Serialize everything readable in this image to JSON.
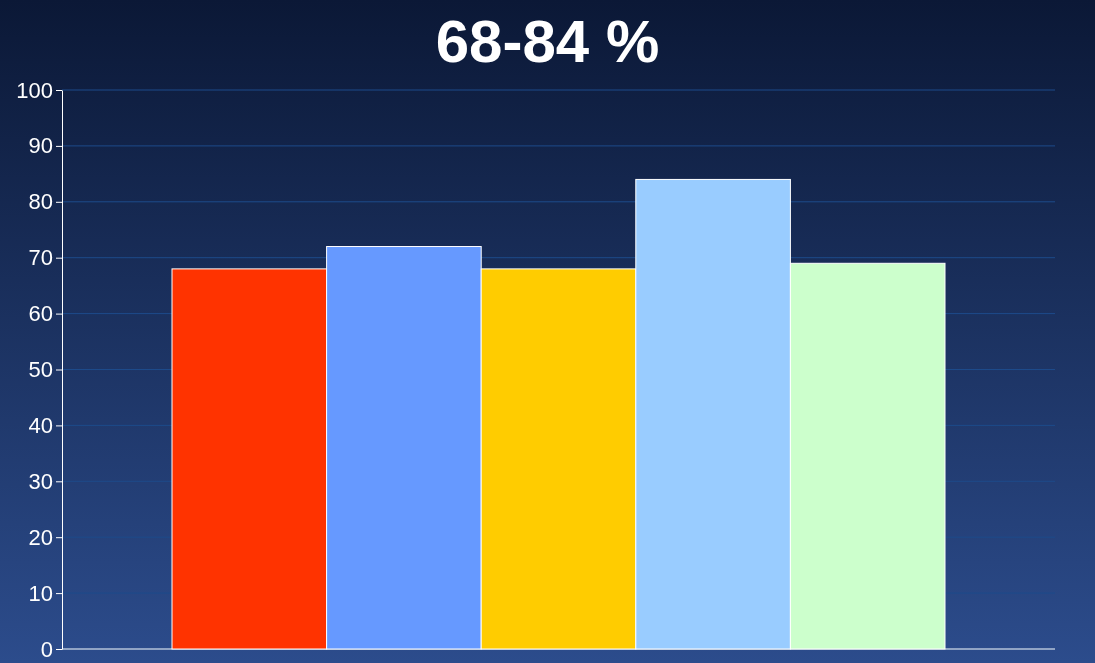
{
  "chart_data": {
    "type": "bar",
    "title": "68-84 %",
    "categories": [
      null,
      null,
      null,
      null,
      null
    ],
    "values": [
      68,
      72,
      68,
      84,
      69
    ],
    "colors": [
      "#ff3300",
      "#6699ff",
      "#ffcc00",
      "#99ccff",
      "#ccffcc"
    ],
    "ylim": [
      0,
      100
    ],
    "yticks": [
      0,
      10,
      20,
      30,
      40,
      50,
      60,
      70,
      80,
      90,
      100
    ],
    "grid": "y"
  }
}
